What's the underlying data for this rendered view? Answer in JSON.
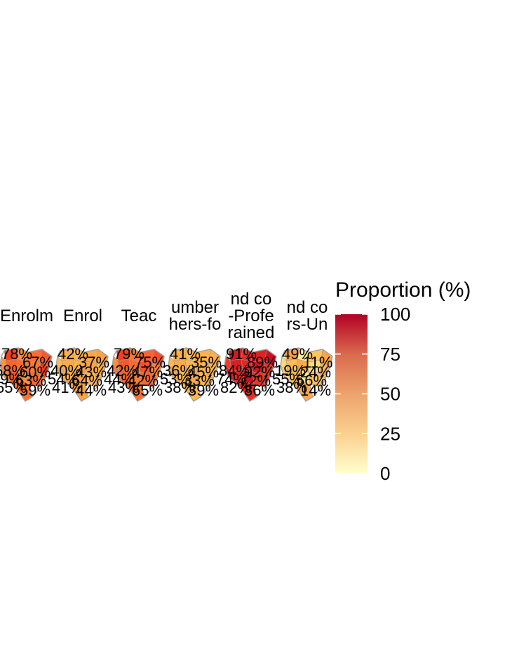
{
  "chart_data": {
    "type": "choropleth-small-multiples",
    "panels": [
      {
        "title_lines": [
          "Enrolm"
        ],
        "region_values": [
          78,
          60,
          67,
          72,
          55,
          70,
          68,
          65,
          80,
          62,
          74,
          58,
          69,
          63,
          66
        ],
        "labels": [
          "78%",
          "67%",
          "58%",
          "60%",
          "59%",
          "63%",
          "55%",
          "59%"
        ]
      },
      {
        "title_lines": [
          "Enrol"
        ],
        "region_values": [
          42,
          38,
          45,
          50,
          36,
          44,
          40,
          48,
          39,
          43,
          41,
          47,
          37,
          46,
          49
        ],
        "labels": [
          "42%",
          "37%",
          "40%",
          "43%",
          "54%",
          "64%",
          "41%",
          "44%"
        ]
      },
      {
        "title_lines": [
          "Teac"
        ],
        "region_values": [
          79,
          65,
          70,
          75,
          60,
          72,
          68,
          74,
          62,
          66,
          71,
          64,
          69,
          73,
          67
        ],
        "labels": [
          "79%",
          "75%",
          "42%",
          "47%",
          "44%",
          "42%",
          "43%",
          "65%"
        ]
      },
      {
        "title_lines": [
          "umber",
          "hers-fo"
        ],
        "region_values": [
          41,
          35,
          39,
          42,
          37,
          44,
          36,
          40,
          38,
          43,
          34,
          45,
          39,
          41,
          37
        ],
        "labels": [
          "41%",
          "35%",
          "36%",
          "45%",
          "53%",
          "33%",
          "38%",
          "39%"
        ]
      },
      {
        "title_lines": [
          "nd co",
          "-Profe",
          "rained"
        ],
        "region_values": [
          91,
          85,
          88,
          95,
          80,
          90,
          86,
          92,
          83,
          89,
          87,
          94,
          82,
          93,
          84
        ],
        "labels": [
          "91%",
          "89%",
          "84%",
          "92%",
          "74%",
          "72%",
          "82%",
          "86%"
        ]
      },
      {
        "title_lines": [
          "nd co",
          "rs-Un"
        ],
        "region_values": [
          49,
          12,
          30,
          48,
          20,
          35,
          44,
          18,
          40,
          25,
          38,
          15,
          33,
          28,
          46
        ],
        "labels": [
          "49%",
          "11%",
          "19%",
          "24%",
          "55%",
          "56%",
          "38%",
          "14%"
        ]
      }
    ],
    "legend": {
      "title": "Proportion (%)",
      "min": 0,
      "max": 100,
      "ticks": [
        0,
        25,
        50,
        75,
        100
      ],
      "colors": [
        "#ffffcc",
        "#fed976",
        "#feb24c",
        "#fd8d3c",
        "#f03b20",
        "#bd0026"
      ],
      "position": "right"
    }
  }
}
